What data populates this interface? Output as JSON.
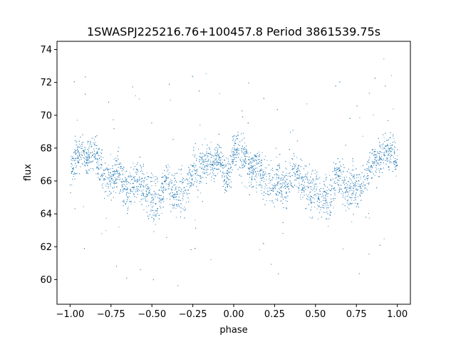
{
  "chart_data": {
    "type": "scatter",
    "title": "1SWASPJ225216.76+100457.8 Period 3861539.75s",
    "xlabel": "phase",
    "ylabel": "flux",
    "xlim": [
      -1.08,
      1.08
    ],
    "ylim": [
      58.5,
      74.5
    ],
    "xticks": [
      -1.0,
      -0.75,
      -0.5,
      -0.25,
      0.0,
      0.25,
      0.5,
      0.75,
      1.0
    ],
    "xtick_labels": [
      "−1.00",
      "−0.75",
      "−0.50",
      "−0.25",
      "0.00",
      "0.25",
      "0.50",
      "0.75",
      "1.00"
    ],
    "yticks": [
      60,
      62,
      64,
      66,
      68,
      70,
      72,
      74
    ],
    "ytick_labels": [
      "60",
      "62",
      "64",
      "66",
      "68",
      "70",
      "72",
      "74"
    ],
    "grid": false,
    "marker_color": "#1f77b4",
    "series": [
      {
        "x": [
          -1.0,
          -0.975,
          -0.95,
          -0.925,
          -0.9,
          -0.875,
          -0.85,
          -0.825,
          -0.8,
          -0.775,
          -0.75,
          -0.725,
          -0.7,
          -0.675,
          -0.65,
          -0.625,
          -0.6,
          -0.575,
          -0.55,
          -0.525,
          -0.5,
          -0.475,
          -0.45,
          -0.425,
          -0.4,
          -0.375,
          -0.35,
          -0.325,
          -0.3,
          -0.275,
          -0.25,
          -0.225,
          -0.2,
          -0.175,
          -0.15,
          -0.125,
          -0.1,
          -0.075,
          -0.05,
          -0.025,
          0.0,
          0.025,
          0.05,
          0.075,
          0.1,
          0.125,
          0.15,
          0.175,
          0.2,
          0.225,
          0.25,
          0.275,
          0.3,
          0.325,
          0.35,
          0.375,
          0.4,
          0.425,
          0.45,
          0.475,
          0.5,
          0.525,
          0.55,
          0.575,
          0.6,
          0.625,
          0.65,
          0.675,
          0.7,
          0.725,
          0.75,
          0.775,
          0.8,
          0.825,
          0.85,
          0.875,
          0.9,
          0.925,
          0.95,
          0.975,
          1.0
        ],
        "y": [
          66.3,
          67.2,
          67.5,
          67.8,
          67.3,
          67.6,
          67.8,
          67.0,
          66.6,
          66.1,
          65.9,
          66.4,
          66.7,
          65.9,
          65.3,
          65.8,
          66.0,
          66.2,
          65.6,
          65.3,
          65.0,
          64.7,
          65.0,
          65.7,
          66.2,
          65.3,
          65.1,
          65.2,
          65.4,
          66.0,
          66.6,
          66.6,
          66.9,
          67.2,
          67.3,
          67.0,
          67.4,
          67.3,
          66.0,
          66.5,
          67.8,
          67.7,
          67.5,
          67.3,
          66.8,
          66.8,
          66.7,
          66.5,
          66.0,
          65.7,
          65.8,
          66.0,
          65.5,
          65.6,
          66.5,
          66.4,
          66.1,
          65.8,
          65.7,
          65.2,
          65.5,
          65.0,
          65.3,
          64.9,
          65.2,
          66.2,
          66.4,
          65.9,
          65.3,
          65.7,
          65.6,
          65.5,
          66.3,
          66.6,
          67.2,
          67.4,
          67.5,
          67.8,
          67.7,
          67.9,
          67.0
        ],
        "spread": [
          1.4,
          1.5,
          1.4,
          1.4,
          1.3,
          1.4,
          1.3,
          1.5,
          1.4,
          1.6,
          1.7,
          1.6,
          1.8,
          1.6,
          1.5,
          1.6,
          1.5,
          1.6,
          1.7,
          1.8,
          1.9,
          1.8,
          1.6,
          1.4,
          1.5,
          1.6,
          1.8,
          1.8,
          1.6,
          1.5,
          1.5,
          1.6,
          1.6,
          1.5,
          1.4,
          1.4,
          1.3,
          1.3,
          1.4,
          1.5,
          1.4,
          1.4,
          1.4,
          1.4,
          1.5,
          1.5,
          1.5,
          1.5,
          1.6,
          1.7,
          1.6,
          1.6,
          1.8,
          1.7,
          1.6,
          1.5,
          1.6,
          1.7,
          1.7,
          1.8,
          1.9,
          1.8,
          1.7,
          1.7,
          1.6,
          1.5,
          1.6,
          1.8,
          1.8,
          1.7,
          1.6,
          1.6,
          1.5,
          1.4,
          1.4,
          1.4,
          1.4,
          1.3,
          1.3,
          1.4,
          1.4
        ]
      }
    ]
  }
}
